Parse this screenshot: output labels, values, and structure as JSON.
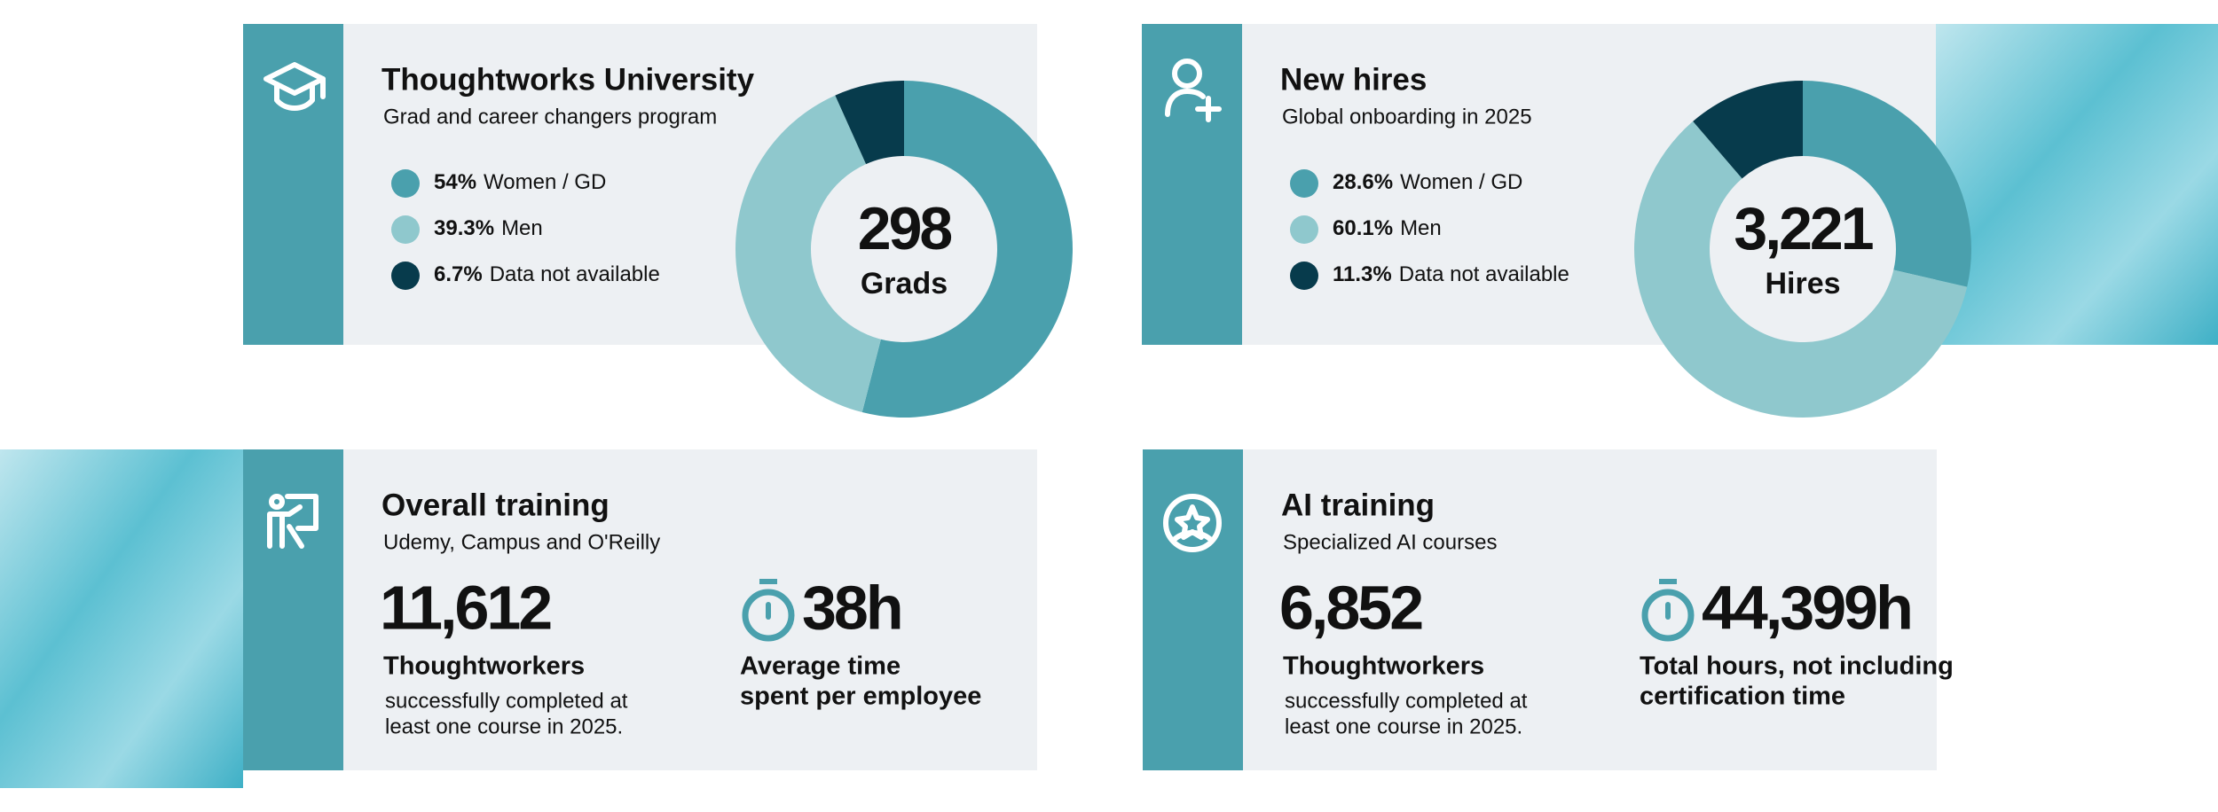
{
  "cards": [
    {
      "title": "Thoughtworks University",
      "subtitle": "Grad and career changers program",
      "chart": {
        "type": "donut",
        "categories": [
          "Women / GD",
          "Men",
          "Data not available"
        ],
        "values": [
          54,
          39.3,
          6.7
        ],
        "value_labels": [
          "54%",
          "39.3%",
          "6.7%"
        ],
        "colors": [
          "#4aa0ad",
          "#8fc8cd",
          "#073b4c"
        ],
        "center_value": "298",
        "center_label": "Grads"
      }
    },
    {
      "title": "New hires",
      "subtitle": "Global onboarding in 2025",
      "chart": {
        "type": "donut",
        "categories": [
          "Women / GD",
          "Men",
          "Data not available"
        ],
        "values": [
          28.6,
          60.1,
          11.3
        ],
        "value_labels": [
          "28.6%",
          "60.1%",
          "11.3%"
        ],
        "colors": [
          "#4aa0ad",
          "#8fc8cd",
          "#073b4c"
        ],
        "center_value": "3,221",
        "center_label": "Hires"
      }
    },
    {
      "title": "Overall training",
      "subtitle": "Udemy, Campus and O'Reilly",
      "stats": [
        {
          "value": "11,612",
          "label": [
            "Thoughtworkers"
          ],
          "description": [
            "successfully completed at",
            "least one course in 2025."
          ]
        },
        {
          "value": "38h",
          "label": [
            "Average time",
            "spent per employee"
          ]
        }
      ]
    },
    {
      "title": "AI training",
      "subtitle": "Specialized AI courses",
      "stats": [
        {
          "value": "6,852",
          "label": [
            "Thoughtworkers"
          ],
          "description": [
            "successfully completed at",
            "least one course in 2025."
          ]
        },
        {
          "value": "44,399h",
          "label": [
            "Total hours, not including",
            "certification time"
          ]
        }
      ]
    }
  ]
}
